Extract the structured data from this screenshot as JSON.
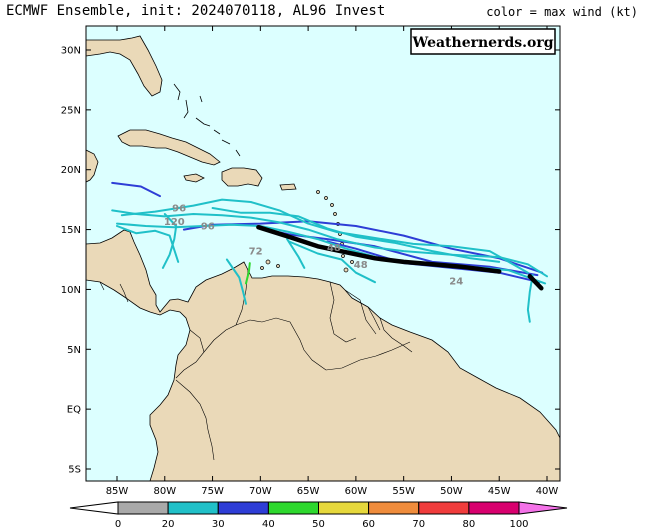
{
  "header": {
    "title": "ECMWF Ensemble, init: 2024070118, AL96 Invest",
    "subtitle": "color = max wind (kt)"
  },
  "logo": {
    "text": "Weathernerds.org"
  },
  "map": {
    "region": "Caribbean Sea and northern South America",
    "colors": {
      "ocean": "#dcffff",
      "land": "#ead9b8",
      "coast": "#000000"
    },
    "lat_labels": [
      "30N",
      "25N",
      "20N",
      "15N",
      "10N",
      "5N",
      "EQ",
      "5S"
    ],
    "lon_labels": [
      "85W",
      "80W",
      "75W",
      "70W",
      "65W",
      "60W",
      "55W",
      "50W",
      "45W",
      "40W"
    ]
  },
  "tracks": [
    {
      "color": "#2e3dd6",
      "points": [
        [
          -85.5,
          18.9
        ],
        [
          -82.5,
          18.6
        ],
        [
          -80.5,
          17.8
        ]
      ]
    },
    {
      "color": "#2e3dd6",
      "points": [
        [
          -40.5,
          11.4
        ],
        [
          -45,
          12.6
        ],
        [
          -50,
          13.4
        ],
        [
          -55,
          14.5
        ],
        [
          -60,
          15.3
        ],
        [
          -65,
          15.7
        ],
        [
          -70,
          15.5
        ],
        [
          -75,
          15.4
        ],
        [
          -78,
          15.0
        ]
      ]
    },
    {
      "color": "#2e3dd6",
      "points": [
        [
          -41,
          11.2
        ],
        [
          -46,
          11.9
        ],
        [
          -52,
          12.3
        ],
        [
          -58,
          13.6
        ],
        [
          -63,
          14.2
        ],
        [
          -67,
          14.6
        ],
        [
          -70,
          15.1
        ]
      ]
    },
    {
      "color": "#2e3dd6",
      "points": [
        [
          -40.8,
          10.6
        ],
        [
          -45,
          11.4
        ],
        [
          -50,
          11.8
        ],
        [
          -55,
          12.2
        ],
        [
          -60,
          13.4
        ],
        [
          -63,
          14.0
        ]
      ]
    },
    {
      "color": "#20c0c8",
      "points": [
        [
          -85.5,
          16.6
        ],
        [
          -83,
          16.3
        ],
        [
          -80,
          16.1
        ],
        [
          -77,
          16.3
        ],
        [
          -74,
          16.2
        ],
        [
          -71,
          16.0
        ],
        [
          -68,
          15.6
        ],
        [
          -65,
          15.0
        ],
        [
          -62,
          14.2
        ],
        [
          -58,
          13.5
        ],
        [
          -55,
          13.2
        ],
        [
          -50,
          12.9
        ],
        [
          -45,
          12.7
        ],
        [
          -42,
          12.1
        ],
        [
          -40,
          11.1
        ]
      ]
    },
    {
      "color": "#20c0c8",
      "points": [
        [
          -85,
          15.5
        ],
        [
          -82,
          15.3
        ],
        [
          -79,
          15.2
        ],
        [
          -76,
          15.3
        ],
        [
          -73,
          15.4
        ],
        [
          -70,
          15.3
        ],
        [
          -67,
          14.8
        ],
        [
          -64,
          14.2
        ],
        [
          -61,
          13.4
        ],
        [
          -57,
          12.5
        ],
        [
          -53,
          12.1
        ],
        [
          -48,
          11.9
        ],
        [
          -44,
          11.6
        ],
        [
          -40.2,
          10.5
        ]
      ]
    },
    {
      "color": "#20c0c8",
      "points": [
        [
          -84.5,
          16.2
        ],
        [
          -81,
          16.5
        ],
        [
          -77,
          17.0
        ],
        [
          -74,
          17.5
        ],
        [
          -71,
          17.3
        ],
        [
          -68,
          16.6
        ],
        [
          -65,
          15.5
        ],
        [
          -62,
          14.8
        ],
        [
          -58,
          14.3
        ],
        [
          -54,
          13.8
        ],
        [
          -50,
          13.6
        ],
        [
          -46,
          13.2
        ],
        [
          -42,
          11.4
        ]
      ]
    },
    {
      "color": "#20c0c8",
      "points": [
        [
          -85,
          15.3
        ],
        [
          -83,
          14.7
        ],
        [
          -81,
          14.9
        ],
        [
          -79.5,
          14.5
        ],
        [
          -79,
          13.3
        ],
        [
          -78.6,
          12.3
        ]
      ]
    },
    {
      "color": "#20c0c8",
      "points": [
        [
          -80,
          16.3
        ],
        [
          -78.8,
          15.3
        ],
        [
          -79,
          14.2
        ],
        [
          -79.5,
          12.9
        ],
        [
          -80.2,
          11.8
        ]
      ]
    },
    {
      "color": "#20c0c8",
      "points": [
        [
          -75,
          16.8
        ],
        [
          -72,
          16.4
        ],
        [
          -69,
          16.4
        ],
        [
          -66,
          16.1
        ],
        [
          -63,
          15.1
        ],
        [
          -60,
          14.4
        ],
        [
          -56,
          13.9
        ],
        [
          -52,
          13.2
        ],
        [
          -48,
          12.6
        ],
        [
          -45,
          12.3
        ]
      ]
    },
    {
      "color": "#20c0c8",
      "points": [
        [
          -67,
          14.0
        ],
        [
          -64,
          13.0
        ],
        [
          -61.5,
          12.5
        ],
        [
          -60,
          11.4
        ],
        [
          -58,
          10.6
        ]
      ]
    },
    {
      "color": "#20c0c8",
      "points": [
        [
          -67.2,
          14.2
        ],
        [
          -66,
          12.7
        ],
        [
          -65.4,
          11.8
        ]
      ]
    },
    {
      "color": "#20c0c8",
      "points": [
        [
          -41.5,
          11.2
        ],
        [
          -41.8,
          9.8
        ],
        [
          -42,
          8.3
        ],
        [
          -41.8,
          7.3
        ]
      ]
    },
    {
      "color": "#20c0c8",
      "points": [
        [
          -73.5,
          12.5
        ],
        [
          -72.2,
          11.0
        ],
        [
          -71.8,
          9.8
        ],
        [
          -71.5,
          8.8
        ]
      ]
    },
    {
      "color": "#2ed82e",
      "points": [
        [
          -71.5,
          10.5
        ],
        [
          -71.2,
          11.5
        ],
        [
          -71.1,
          12.2
        ]
      ]
    },
    {
      "color": "#000000",
      "width": 4.5,
      "points": [
        [
          -70.2,
          15.2
        ],
        [
          -67,
          14.4
        ],
        [
          -64,
          13.6
        ],
        [
          -61,
          13.1
        ],
        [
          -58,
          12.6
        ],
        [
          -55,
          12.3
        ],
        [
          -52,
          12.1
        ],
        [
          -49,
          11.9
        ],
        [
          -45,
          11.5
        ]
      ]
    },
    {
      "color": "#000000",
      "width": 4.5,
      "points": [
        [
          -41.8,
          11.1
        ],
        [
          -41.2,
          10.6
        ],
        [
          -40.6,
          10.1
        ]
      ]
    }
  ],
  "hour_labels": [
    {
      "text": "96",
      "lon": -78.5,
      "lat": 16.5
    },
    {
      "text": "120",
      "lon": -79,
      "lat": 15.4
    },
    {
      "text": "96",
      "lon": -75.5,
      "lat": 15.0
    },
    {
      "text": "72",
      "lon": -70.5,
      "lat": 12.9
    },
    {
      "text": "48",
      "lon": -62.3,
      "lat": 13.2
    },
    {
      "text": "48",
      "lon": -59.5,
      "lat": 11.8
    },
    {
      "text": "24",
      "lon": -49.5,
      "lat": 10.4
    }
  ],
  "colorbar": {
    "title": "max wind (kt)",
    "ticks": [
      "0",
      "20",
      "30",
      "40",
      "50",
      "60",
      "70",
      "80",
      "100"
    ],
    "colors": [
      "#a9a9a9",
      "#20c0c8",
      "#2e3dd6",
      "#2ed82e",
      "#e6d83c",
      "#ef8c3c",
      "#f03c3c",
      "#d8006e",
      "#f472e8"
    ]
  }
}
